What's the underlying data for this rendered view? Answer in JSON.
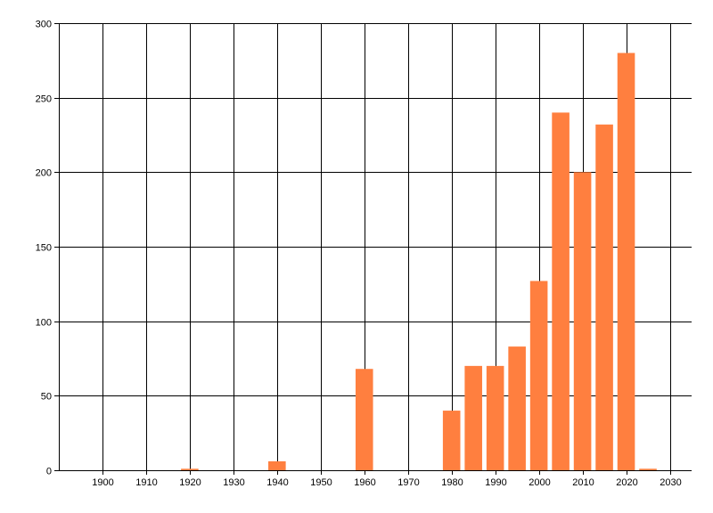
{
  "chart_data": {
    "type": "bar",
    "title": "",
    "xlabel": "",
    "ylabel": "",
    "grid": true,
    "xlim": [
      1890,
      2035
    ],
    "ylim": [
      0,
      300
    ],
    "bar_width_years": 4,
    "x_ticks": [
      1900,
      1910,
      1920,
      1930,
      1940,
      1950,
      1960,
      1970,
      1980,
      1990,
      2000,
      2010,
      2020,
      2030
    ],
    "y_ticks": [
      0,
      50,
      100,
      150,
      200,
      250,
      300
    ],
    "bar_color": "#ff7f3f",
    "series": [
      {
        "x": [
          1920,
          1940,
          1960,
          1980,
          1985,
          1990,
          1995,
          2000,
          2005,
          2010,
          2015,
          2020,
          2025
        ],
        "values": [
          1,
          6,
          68,
          40,
          70,
          70,
          83,
          127,
          240,
          200,
          232,
          280,
          1
        ]
      }
    ]
  }
}
